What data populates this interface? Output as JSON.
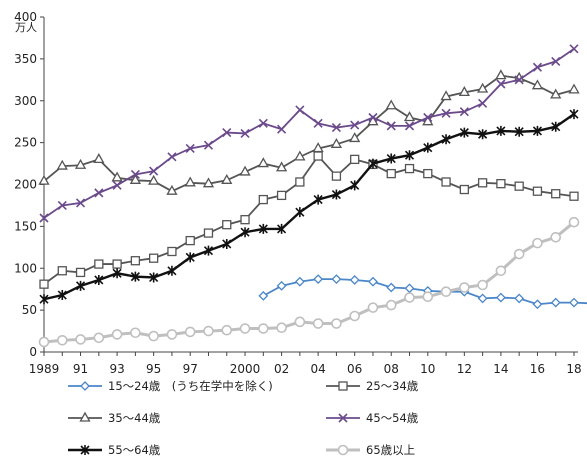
{
  "chart_data": {
    "type": "line",
    "ylabel": "万人",
    "ylim": [
      0,
      400
    ],
    "yticks": [
      0,
      50,
      100,
      150,
      200,
      250,
      300,
      350,
      400
    ],
    "xlim": [
      1989,
      2018
    ],
    "xtick_labels": [
      {
        "x": 1989,
        "label": "1989"
      },
      {
        "x": 1991,
        "label": "91"
      },
      {
        "x": 1993,
        "label": "93"
      },
      {
        "x": 1995,
        "label": "95"
      },
      {
        "x": 1997,
        "label": "97"
      },
      {
        "x": 2000,
        "label": "2000"
      },
      {
        "x": 2002,
        "label": "02"
      },
      {
        "x": 2004,
        "label": "04"
      },
      {
        "x": 2006,
        "label": "06"
      },
      {
        "x": 2008,
        "label": "08"
      },
      {
        "x": 2010,
        "label": "10"
      },
      {
        "x": 2012,
        "label": "12"
      },
      {
        "x": 2014,
        "label": "14"
      },
      {
        "x": 2016,
        "label": "16"
      },
      {
        "x": 2018,
        "label": "18"
      }
    ],
    "grid": false,
    "legend_position": "bottom",
    "series": [
      {
        "name": "15～24歳　(うち在学中を除く)",
        "color": "#4a86c8",
        "marker": "diamond",
        "start": 2001,
        "values": [
          67,
          79,
          84,
          87,
          87,
          86,
          84,
          77,
          76,
          73,
          72,
          72,
          64,
          65,
          64,
          57,
          59,
          59,
          58
        ]
      },
      {
        "name": "25～34歳",
        "color": "#555555",
        "marker": "square",
        "start": 1989,
        "values": [
          81,
          97,
          95,
          105,
          105,
          109,
          112,
          120,
          133,
          142,
          152,
          158,
          182,
          187,
          203,
          234,
          210,
          230,
          224,
          213,
          219,
          213,
          203,
          194,
          202,
          201,
          198,
          192,
          189,
          186
        ]
      },
      {
        "name": "35～44歳",
        "color": "#555555",
        "marker": "triangle",
        "start": 1989,
        "values": [
          204,
          222,
          223,
          230,
          208,
          205,
          204,
          192,
          202,
          201,
          205,
          215,
          225,
          220,
          233,
          243,
          248,
          255,
          275,
          294,
          280,
          275,
          305,
          310,
          314,
          330,
          327,
          318,
          307,
          313
        ]
      },
      {
        "name": "45～54歳",
        "color": "#6b4a8c",
        "marker": "x",
        "start": 1989,
        "values": [
          160,
          175,
          178,
          190,
          199,
          212,
          216,
          233,
          243,
          247,
          262,
          261,
          273,
          266,
          289,
          273,
          268,
          271,
          280,
          270,
          270,
          280,
          285,
          287,
          297,
          320,
          325,
          340,
          347,
          362
        ]
      },
      {
        "name": "55～64歳",
        "color": "#111111",
        "marker": "star",
        "start": 1989,
        "values": [
          63,
          68,
          79,
          86,
          94,
          90,
          89,
          97,
          113,
          121,
          129,
          143,
          147,
          147,
          167,
          182,
          188,
          199,
          225,
          231,
          235,
          244,
          254,
          262,
          260,
          264,
          263,
          264,
          269,
          284
        ]
      },
      {
        "name": "65歳以上",
        "color": "#bfbfbf",
        "marker": "circle",
        "start": 1989,
        "values": [
          12,
          14,
          15,
          17,
          21,
          23,
          19,
          21,
          24,
          25,
          26,
          28,
          28,
          29,
          36,
          34,
          34,
          43,
          53,
          56,
          65,
          66,
          72,
          77,
          80,
          97,
          117,
          130,
          137,
          155
        ]
      }
    ]
  }
}
